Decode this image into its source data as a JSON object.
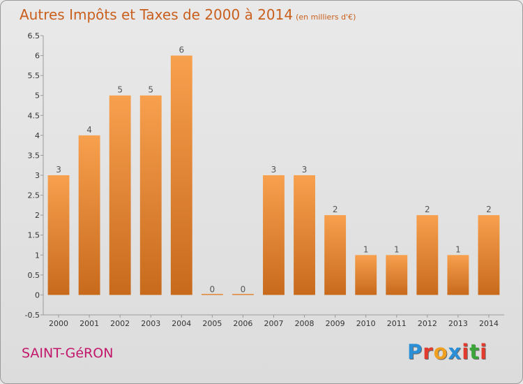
{
  "title": "Autres Impôts et Taxes de 2000 à 2014",
  "subtitle": "(en milliers d'€)",
  "commune": "SAINT-GéRON",
  "logo": {
    "letters": [
      "P",
      "r",
      "o",
      "x",
      "i",
      "t",
      "i"
    ],
    "colors": [
      "#2a8fd6",
      "#e23b2d",
      "#f0a020",
      "#2a8fd6",
      "#e23b2d",
      "#3aa63a",
      "#e23b2d"
    ]
  },
  "colors": {
    "bar_light": "#f7a04e",
    "bar_dark": "#c86a1c",
    "title": "#c95f1d",
    "commune": "#c2186b"
  },
  "chart_data": {
    "type": "bar",
    "categories": [
      "2000",
      "2001",
      "2002",
      "2003",
      "2004",
      "2005",
      "2006",
      "2007",
      "2008",
      "2009",
      "2010",
      "2011",
      "2012",
      "2013",
      "2014"
    ],
    "values": [
      3,
      4,
      5,
      5,
      6,
      0,
      0,
      3,
      3,
      2,
      1,
      1,
      2,
      1,
      2
    ],
    "ylim": [
      -0.5,
      6.5
    ],
    "yticks": [
      "-0.5",
      "0",
      "0.5",
      "1",
      "1.5",
      "2",
      "2.5",
      "3",
      "3.5",
      "4",
      "4.5",
      "5",
      "5.5",
      "6",
      "6.5"
    ],
    "grid": false,
    "legend": "none"
  }
}
